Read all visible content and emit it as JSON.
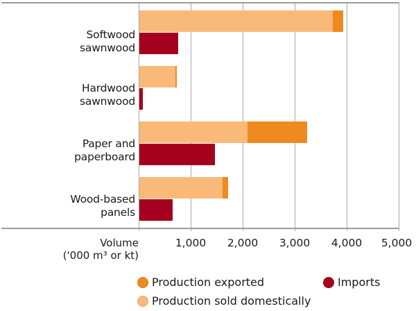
{
  "chart_data": {
    "type": "bar",
    "orientation": "horizontal",
    "stacked": "production stacked (domestic + exported), imports separate bar",
    "categories": [
      "Softwood sawnwood",
      "Hardwood sawnwood",
      "Paper and paperboard",
      "Wood-based panels"
    ],
    "category_lines": [
      [
        "Softwood",
        "sawnwood"
      ],
      [
        "Hardwood",
        "sawnwood"
      ],
      [
        "Paper and",
        "paperboard"
      ],
      [
        "Wood-based",
        "panels"
      ]
    ],
    "series": [
      {
        "name": "Production sold domestically",
        "color": "#F9BA79",
        "values": [
          3720,
          690,
          2080,
          1600
        ]
      },
      {
        "name": "Production exported",
        "color": "#EF8A1F",
        "values": [
          200,
          30,
          1150,
          110
        ]
      },
      {
        "name": "Imports",
        "color": "#A5001E",
        "values": [
          750,
          60,
          1450,
          640
        ]
      }
    ],
    "xlabel": "Volume ('000 m³ or kt)",
    "xlabel_lines": [
      "Volume",
      "('000 m³ or kt)"
    ],
    "xlim": [
      0,
      5000
    ],
    "xticks": [
      "1,000",
      "2,000",
      "3,000",
      "4,000",
      "5,000"
    ],
    "grid": true,
    "legend_position": "bottom",
    "legend": [
      "Production exported",
      "Imports",
      "Production sold domestically"
    ]
  }
}
